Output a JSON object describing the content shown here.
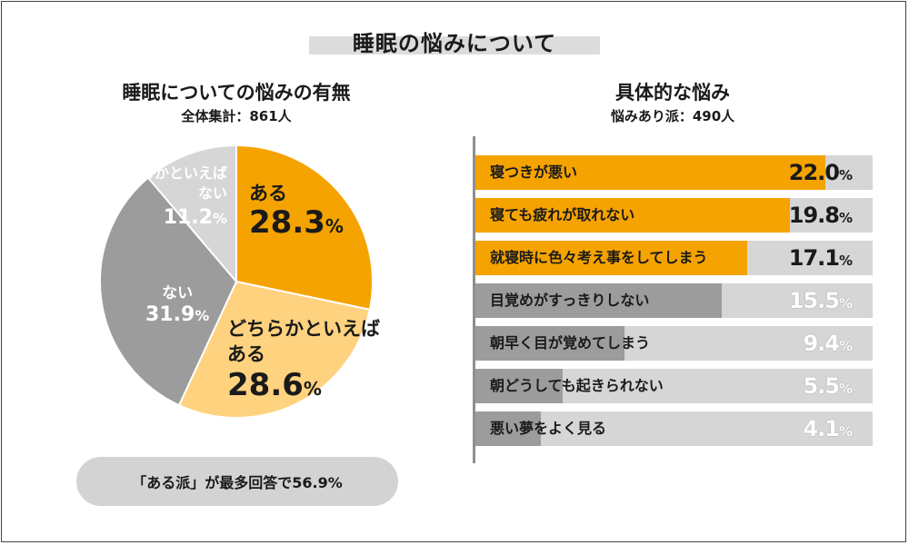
{
  "main_title": "睡眠の悩みについて",
  "left_chart": {
    "title": "睡眠についての悩みの有無",
    "subtitle": "全体集計：861人"
  },
  "right_chart": {
    "title": "具体的な悩み",
    "subtitle": "悩みあり派：490人"
  },
  "summary": "「ある派」が最多回答で56.9%",
  "colors": {
    "orange": "#f5a300",
    "light_orange": "#ffd27f",
    "dark_gray": "#9c9c9c",
    "light_gray": "#d6d6d6",
    "bar_bg": "#d6d6d6"
  },
  "chart_data": [
    {
      "type": "pie",
      "title": "睡眠についての悩みの有無",
      "slices": [
        {
          "label": "ある",
          "value": 28.3,
          "display_value": "28.3",
          "unit": "%",
          "color": "#f5a300"
        },
        {
          "label": "どちらかといえば\nある",
          "value": 28.6,
          "display_value": "28.6",
          "unit": "%",
          "color": "#ffd27f"
        },
        {
          "label": "ない",
          "value": 31.9,
          "display_value": "31.9",
          "unit": "%",
          "color": "#9c9c9c"
        },
        {
          "label": "どちらかといえば\nない",
          "value": 11.2,
          "display_value": "11.2",
          "unit": "%",
          "color": "#d6d6d6"
        }
      ]
    },
    {
      "type": "bar",
      "title": "具体的な悩み",
      "orientation": "horizontal",
      "xlim": [
        0,
        25
      ],
      "categories": [
        "寝つきが悪い",
        "寝ても疲れが取れない",
        "就寝時に色々考え事をしてしまう",
        "目覚めがすっきりしない",
        "朝早く目が覚めてしまう",
        "朝どうしても起きられない",
        "悪い夢をよく見る"
      ],
      "values": [
        22.0,
        19.8,
        17.1,
        15.5,
        9.4,
        5.5,
        4.1
      ],
      "display_values": [
        "22.0",
        "19.8",
        "17.1",
        "15.5",
        "9.4",
        "5.5",
        "4.1"
      ],
      "unit": "%",
      "highlight_colors": [
        "#f5a300",
        "#f5a300",
        "#f5a300",
        "#9c9c9c",
        "#9c9c9c",
        "#9c9c9c",
        "#9c9c9c"
      ]
    }
  ]
}
